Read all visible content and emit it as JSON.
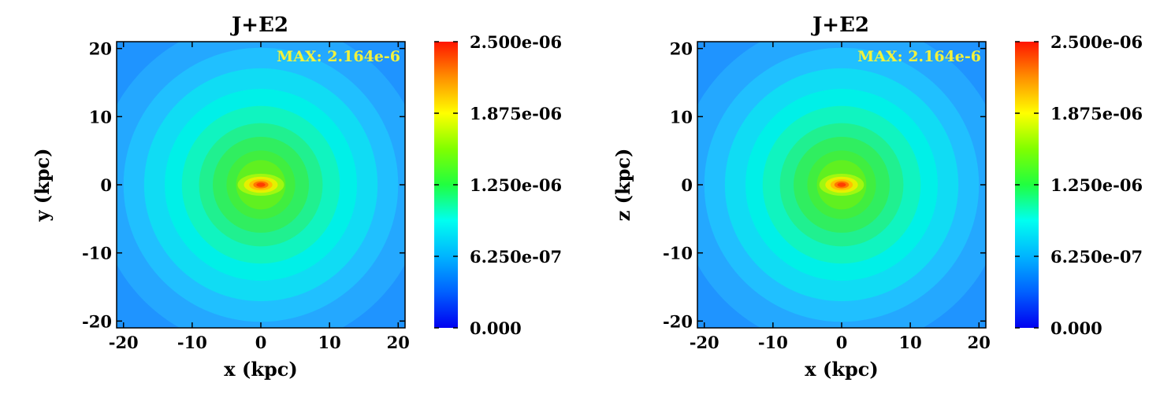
{
  "chart_data": [
    {
      "type": "heatmap",
      "title": "J+E2",
      "xlabel": "x (kpc)",
      "ylabel": "y (kpc)",
      "xlim": [
        -21,
        21
      ],
      "ylim": [
        -21,
        21
      ],
      "x_ticks": [
        "-20",
        "-10",
        "0",
        "10",
        "20"
      ],
      "y_ticks": [
        "20",
        "10",
        "0",
        "-10",
        "-20"
      ],
      "x_tick_values": [
        -20,
        -10,
        0,
        10,
        20
      ],
      "y_tick_values": [
        20,
        10,
        0,
        -10,
        -20
      ],
      "annotation": "MAX: 2.164e-6",
      "max_value": 2.164e-06,
      "colorbar": {
        "range": [
          0,
          2.5e-06
        ],
        "ticks": [
          "2.500e-06",
          "1.875e-06",
          "1.250e-06",
          "6.250e-07",
          "0.000"
        ],
        "tick_values": [
          2.5e-06,
          1.875e-06,
          1.25e-06,
          6.25e-07,
          0
        ],
        "colormap": "jet"
      },
      "grid": false
    },
    {
      "type": "heatmap",
      "title": "J+E2",
      "xlabel": "x (kpc)",
      "ylabel": "z (kpc)",
      "xlim": [
        -21,
        21
      ],
      "ylim": [
        -21,
        21
      ],
      "x_ticks": [
        "-20",
        "-10",
        "0",
        "10",
        "20"
      ],
      "y_ticks": [
        "20",
        "10",
        "0",
        "-10",
        "-20"
      ],
      "x_tick_values": [
        -20,
        -10,
        0,
        10,
        20
      ],
      "y_tick_values": [
        20,
        10,
        0,
        -10,
        -20
      ],
      "annotation": "MAX: 2.164e-6",
      "max_value": 2.164e-06,
      "colorbar": {
        "range": [
          0,
          2.5e-06
        ],
        "ticks": [
          "2.500e-06",
          "1.875e-06",
          "1.250e-06",
          "6.250e-07",
          "0.000"
        ],
        "tick_values": [
          2.5e-06,
          1.875e-06,
          1.25e-06,
          6.25e-07,
          0
        ],
        "colormap": "jet"
      },
      "grid": false
    }
  ]
}
